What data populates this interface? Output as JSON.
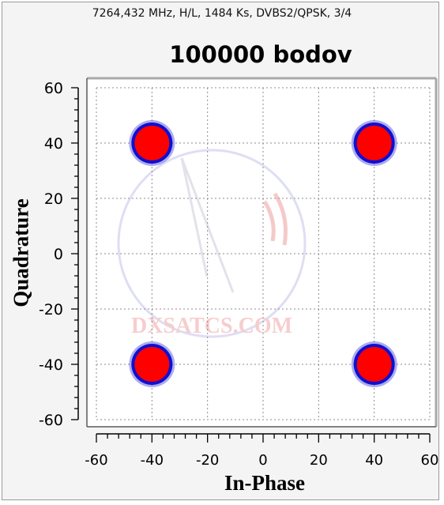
{
  "header": {
    "subtitle": "7264,432 MHz, H/L, 1484 Ks, DVBS2/QPSK, 3/4",
    "title": "100000 bodov"
  },
  "watermark": {
    "text": "DXSATCS.COM"
  },
  "chart_data": {
    "type": "scatter",
    "xlabel": "In-Phase",
    "ylabel": "Quadrature",
    "xlim": [
      -60,
      60
    ],
    "ylim": [
      -60,
      60
    ],
    "xticks": [
      -60,
      -40,
      -20,
      0,
      20,
      40,
      60
    ],
    "yticks": [
      60,
      40,
      20,
      0,
      -20,
      -40,
      -60
    ],
    "grid": true,
    "points": [
      {
        "x": -40,
        "y": 40
      },
      {
        "x": 40,
        "y": 40
      },
      {
        "x": -40,
        "y": -40
      },
      {
        "x": 40,
        "y": -40
      }
    ],
    "colors": {
      "core": "#ff0000",
      "edge": "#1010d0",
      "grid": "#8c8c8c"
    }
  }
}
